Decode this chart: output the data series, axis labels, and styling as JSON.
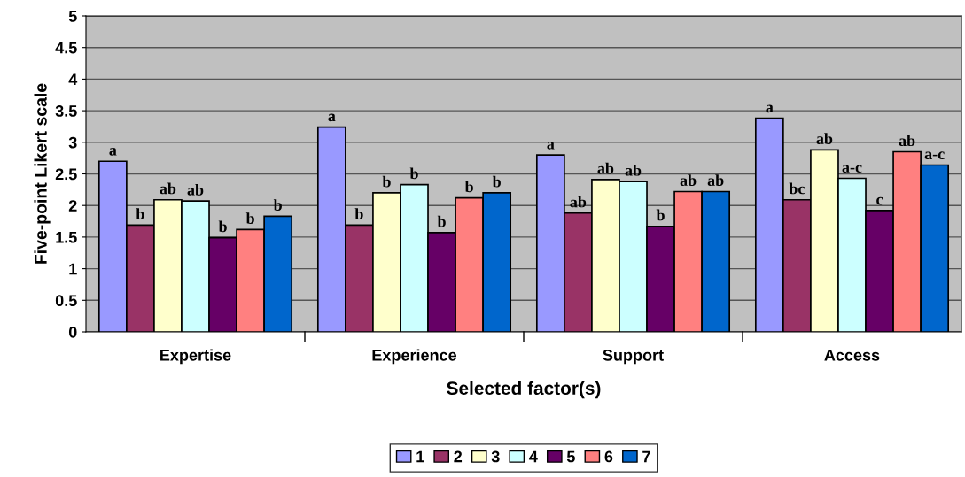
{
  "chart_data": {
    "type": "bar",
    "xlabel": "Selected factor(s)",
    "ylabel": "Five-point Likert scale",
    "categories": [
      "Expertise",
      "Experience",
      "Support",
      "Access"
    ],
    "ylim": [
      0,
      5
    ],
    "yticks": [
      0,
      0.5,
      1,
      1.5,
      2,
      2.5,
      3,
      3.5,
      4,
      4.5,
      5
    ],
    "grid": "y",
    "legend": "bottom",
    "series": [
      {
        "name": "1",
        "color": "#9999ff",
        "values": [
          2.7,
          3.24,
          2.8,
          3.38
        ],
        "value_labels": [
          "a",
          "a",
          "a",
          "a"
        ]
      },
      {
        "name": "2",
        "color": "#993366",
        "values": [
          1.69,
          1.69,
          1.88,
          2.09
        ],
        "value_labels": [
          "b",
          "b",
          "ab",
          "bc"
        ]
      },
      {
        "name": "3",
        "color": "#ffffcc",
        "values": [
          2.09,
          2.2,
          2.41,
          2.88
        ],
        "value_labels": [
          "ab",
          "b",
          "ab",
          "ab"
        ]
      },
      {
        "name": "4",
        "color": "#ccffff",
        "values": [
          2.07,
          2.33,
          2.38,
          2.43
        ],
        "value_labels": [
          "ab",
          "b",
          "ab",
          "a-c"
        ]
      },
      {
        "name": "5",
        "color": "#660066",
        "values": [
          1.49,
          1.57,
          1.67,
          1.92
        ],
        "value_labels": [
          "b",
          "b",
          "b",
          "c"
        ]
      },
      {
        "name": "6",
        "color": "#ff8080",
        "values": [
          1.62,
          2.12,
          2.22,
          2.85
        ],
        "value_labels": [
          "b",
          "b",
          "ab",
          "ab"
        ]
      },
      {
        "name": "7",
        "color": "#0066cc",
        "values": [
          1.83,
          2.2,
          2.22,
          2.64
        ],
        "value_labels": [
          "b",
          "b",
          "ab",
          "a-c"
        ]
      }
    ]
  }
}
